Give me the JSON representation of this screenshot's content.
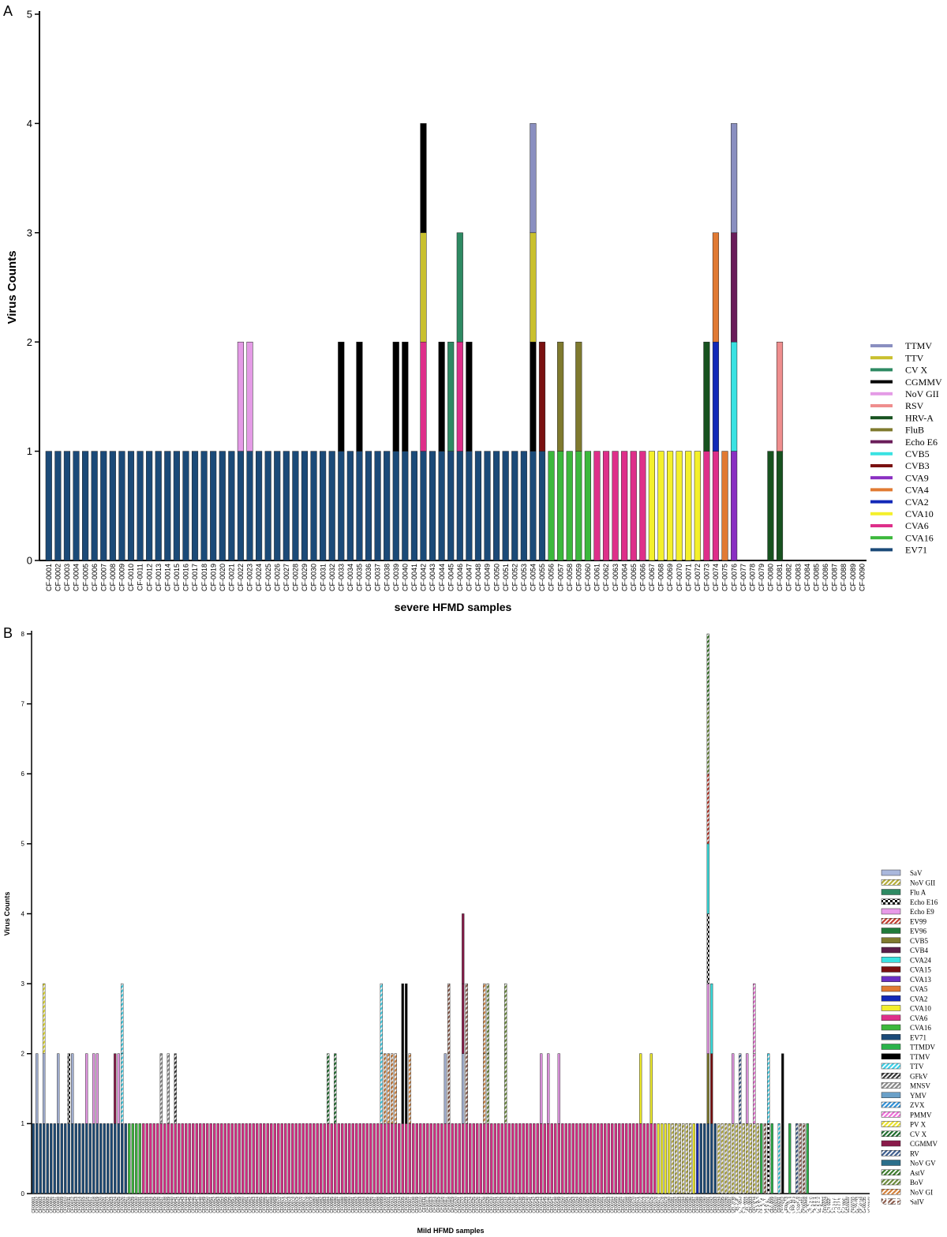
{
  "chart_data": [
    {
      "panel": "A",
      "type": "bar",
      "stacked": true,
      "xlabel": "severe HFMD samples",
      "ylabel": "Virus Counts",
      "ylim": [
        0,
        5
      ],
      "yticks": [
        0,
        1,
        2,
        3,
        4,
        5
      ],
      "legend_position": "right",
      "sample_prefix": "CF-",
      "sample_count": 90,
      "legend": [
        {
          "name": "TTMV",
          "color": "#8a8fc0"
        },
        {
          "name": "TTV",
          "color": "#c9c02e"
        },
        {
          "name": "CV X",
          "color": "#2e8a63"
        },
        {
          "name": "CGMMV",
          "color": "#000000"
        },
        {
          "name": "NoV GII",
          "color": "#e49be6"
        },
        {
          "name": "RSV",
          "color": "#ef8e8e"
        },
        {
          "name": "HRV-A",
          "color": "#17521f"
        },
        {
          "name": "FluB",
          "color": "#7f7a2e"
        },
        {
          "name": "Echo E6",
          "color": "#6a1d5a"
        },
        {
          "name": "CVB5",
          "color": "#3ae2e2"
        },
        {
          "name": "CVB3",
          "color": "#7a1010"
        },
        {
          "name": "CVA9",
          "color": "#8a2fc2"
        },
        {
          "name": "CVA4",
          "color": "#e17a33"
        },
        {
          "name": "CVA2",
          "color": "#1228b8"
        },
        {
          "name": "CVA10",
          "color": "#f4f02c"
        },
        {
          "name": "CVA6",
          "color": "#de2f8a"
        },
        {
          "name": "CVA16",
          "color": "#3cb83c"
        },
        {
          "name": "EV71",
          "color": "#1b4a78"
        }
      ],
      "stacks": {
        "1": [
          "EV71"
        ],
        "2": [
          "EV71"
        ],
        "3": [
          "EV71"
        ],
        "4": [
          "EV71"
        ],
        "5": [
          "EV71"
        ],
        "6": [
          "EV71"
        ],
        "7": [
          "EV71"
        ],
        "8": [
          "EV71"
        ],
        "9": [
          "EV71"
        ],
        "10": [
          "EV71"
        ],
        "11": [
          "EV71"
        ],
        "12": [
          "EV71"
        ],
        "13": [
          "EV71"
        ],
        "14": [
          "EV71"
        ],
        "15": [
          "EV71"
        ],
        "16": [
          "EV71"
        ],
        "17": [
          "EV71"
        ],
        "18": [
          "EV71"
        ],
        "19": [
          "EV71"
        ],
        "20": [
          "EV71"
        ],
        "21": [
          "EV71"
        ],
        "22": [
          "EV71",
          "NoV GII"
        ],
        "23": [
          "EV71",
          "NoV GII"
        ],
        "24": [
          "EV71"
        ],
        "25": [
          "EV71"
        ],
        "26": [
          "EV71"
        ],
        "27": [
          "EV71"
        ],
        "28": [
          "EV71"
        ],
        "29": [
          "EV71"
        ],
        "30": [
          "EV71"
        ],
        "31": [
          "EV71"
        ],
        "32": [
          "EV71"
        ],
        "33": [
          "EV71",
          "CGMMV"
        ],
        "34": [
          "EV71"
        ],
        "35": [
          "EV71",
          "CGMMV"
        ],
        "36": [
          "EV71"
        ],
        "37": [
          "EV71"
        ],
        "38": [
          "EV71"
        ],
        "39": [
          "EV71",
          "CGMMV"
        ],
        "40": [
          "EV71",
          "CGMMV"
        ],
        "41": [
          "EV71"
        ],
        "42": [
          "EV71",
          "CVA6",
          "TTV",
          "CGMMV"
        ],
        "43": [
          "EV71"
        ],
        "44": [
          "EV71",
          "CGMMV"
        ],
        "45": [
          "EV71",
          "CV X"
        ],
        "46": [
          "EV71",
          "CVA6",
          "CV X"
        ],
        "47": [
          "EV71",
          "CGMMV"
        ],
        "48": [
          "EV71"
        ],
        "49": [
          "EV71"
        ],
        "50": [
          "EV71"
        ],
        "51": [
          "EV71"
        ],
        "52": [
          "EV71"
        ],
        "53": [
          "EV71"
        ],
        "54": [
          "EV71",
          "CGMMV",
          "TTV",
          "TTMV"
        ],
        "55": [
          "EV71",
          "CVB3"
        ],
        "56": [
          "CVA16"
        ],
        "57": [
          "CVA16",
          "FluB"
        ],
        "58": [
          "CVA16"
        ],
        "59": [
          "CVA16",
          "FluB"
        ],
        "60": [
          "CVA16"
        ],
        "61": [
          "CVA6"
        ],
        "62": [
          "CVA6"
        ],
        "63": [
          "CVA6"
        ],
        "64": [
          "CVA6"
        ],
        "65": [
          "CVA6"
        ],
        "66": [
          "CVA6"
        ],
        "67": [
          "CVA10"
        ],
        "68": [
          "CVA10"
        ],
        "69": [
          "CVA10"
        ],
        "70": [
          "CVA10"
        ],
        "71": [
          "CVA10"
        ],
        "72": [
          "CVA10"
        ],
        "73": [
          "CVA6",
          "HRV-A"
        ],
        "74": [
          "CVA6",
          "CVA2",
          "CVA4"
        ],
        "75": [
          "CVA4"
        ],
        "76": [
          "CVA9",
          "CVB5",
          "Echo E6",
          "TTMV"
        ],
        "80": [
          "HRV-A"
        ],
        "81": [
          "HRV-A",
          "RSV"
        ]
      }
    },
    {
      "panel": "B",
      "type": "bar",
      "stacked": true,
      "xlabel": "Mild HFMD samples",
      "ylabel": "Virus Counts",
      "ylim": [
        0,
        8
      ],
      "yticks": [
        0,
        1,
        2,
        3,
        4,
        5,
        6,
        7,
        8
      ],
      "legend_position": "right",
      "sample_prefix": "CF00",
      "sample_count": 236,
      "legend": [
        {
          "name": "SaV",
          "color": "#aab8dc",
          "pattern": "solid"
        },
        {
          "name": "NoV GII",
          "color": "#b5ad3a",
          "pattern": "hatch"
        },
        {
          "name": "Flu A",
          "color": "#2e8a63",
          "pattern": "solid"
        },
        {
          "name": "Echo E16",
          "color": "#000000",
          "pattern": "checker"
        },
        {
          "name": "Echo E9",
          "color": "#e89ae8",
          "pattern": "solid"
        },
        {
          "name": "EV99",
          "color": "#c0392b",
          "pattern": "hatch"
        },
        {
          "name": "EV96",
          "color": "#1f7a3a",
          "pattern": "solid"
        },
        {
          "name": "CVB5",
          "color": "#7f7a2e",
          "pattern": "solid"
        },
        {
          "name": "CVB4",
          "color": "#5a1d4a",
          "pattern": "solid"
        },
        {
          "name": "CVA24",
          "color": "#3ae2e2",
          "pattern": "solid"
        },
        {
          "name": "CVA15",
          "color": "#7a1010",
          "pattern": "solid"
        },
        {
          "name": "CVA13",
          "color": "#6a2fc2",
          "pattern": "solid"
        },
        {
          "name": "CVA5",
          "color": "#e17a33",
          "pattern": "solid"
        },
        {
          "name": "CVA2",
          "color": "#1228b8",
          "pattern": "solid"
        },
        {
          "name": "CVA10",
          "color": "#f4f02c",
          "pattern": "solid"
        },
        {
          "name": "CVA6",
          "color": "#de2f8a",
          "pattern": "solid"
        },
        {
          "name": "CVA16",
          "color": "#3cb83c",
          "pattern": "solid"
        },
        {
          "name": "EV71",
          "color": "#1b4a78",
          "pattern": "solid"
        },
        {
          "name": "TTMDV",
          "color": "#2bb34a",
          "pattern": "solid"
        },
        {
          "name": "TTMV",
          "color": "#000000",
          "pattern": "solid"
        },
        {
          "name": "TTV",
          "color": "#3ad0e8",
          "pattern": "hatch"
        },
        {
          "name": "GFkV",
          "color": "#333333",
          "pattern": "hatch"
        },
        {
          "name": "MNSV",
          "color": "#888888",
          "pattern": "hatch"
        },
        {
          "name": "YMV",
          "color": "#6aa0c8",
          "pattern": "solid"
        },
        {
          "name": "ZVX",
          "color": "#2d8fd8",
          "pattern": "hatch"
        },
        {
          "name": "PMMV",
          "color": "#ee6fd8",
          "pattern": "hatch"
        },
        {
          "name": "PV X",
          "color": "#e8e02c",
          "pattern": "hatch"
        },
        {
          "name": "CV X",
          "color": "#1a6a2a",
          "pattern": "hatch"
        },
        {
          "name": "CGMMV",
          "color": "#8a1a4a",
          "pattern": "solid"
        },
        {
          "name": "RV",
          "color": "#3a5a8a",
          "pattern": "hatch"
        },
        {
          "name": "NoV GV",
          "color": "#2a6e8a",
          "pattern": "solid"
        },
        {
          "name": "AstV",
          "color": "#3a7a2a",
          "pattern": "hatch"
        },
        {
          "name": "BoV",
          "color": "#6a8a3a",
          "pattern": "hatch"
        },
        {
          "name": "NoV GI",
          "color": "#d2803a",
          "pattern": "hatch"
        },
        {
          "name": "SalV",
          "color": "#8a5a4a",
          "pattern": "hatch"
        }
      ],
      "group_defaults": [
        {
          "from": 1,
          "to": 27,
          "virus": "EV71"
        },
        {
          "from": 28,
          "to": 31,
          "virus": "CVA16"
        },
        {
          "from": 32,
          "to": 176,
          "virus": "CVA6"
        },
        {
          "from": 177,
          "to": 180,
          "virus": "CVA10"
        },
        {
          "from": 181,
          "to": 186,
          "virus": "NoV GII"
        },
        {
          "from": 187,
          "to": 187,
          "virus": "CVA10"
        },
        {
          "from": 188,
          "to": 188,
          "virus": "CVA2"
        },
        {
          "from": 189,
          "to": 193,
          "virus": "EV71"
        },
        {
          "from": 194,
          "to": 205,
          "virus": "NoV GII"
        }
      ],
      "extra": {
        "2": [
          "SaV"
        ],
        "4": [
          "SaV",
          "PV X"
        ],
        "8": [
          "SaV"
        ],
        "11": [
          "Echo E16"
        ],
        "12": [
          "SaV"
        ],
        "16": [
          "Echo E9"
        ],
        "18": [
          "Echo E9"
        ],
        "19": [
          "Echo E9"
        ],
        "24": [
          "CGMMV"
        ],
        "25": [
          "Echo E9"
        ],
        "26": [
          "TTV",
          "TTV"
        ],
        "37": [
          "MNSV"
        ],
        "39": [
          "MNSV"
        ],
        "41": [
          "GFkV"
        ],
        "84": [
          "CV X"
        ],
        "86": [
          "CV X"
        ],
        "99": [
          "TTV",
          "TTV"
        ],
        "100": [
          "NoV GI"
        ],
        "101": [
          "NoV GI"
        ],
        "102": [
          "NoV GI"
        ],
        "103": [
          "NoV GI"
        ],
        "105": [
          "TTMV",
          "TTMV"
        ],
        "106": [
          "TTMV",
          "TTMV"
        ],
        "107": [
          "NoV GI"
        ],
        "117": [
          "SaV"
        ],
        "118": [
          "SalV",
          "SalV"
        ],
        "122": [
          "SaV",
          "CGMMV",
          "CGMMV"
        ],
        "123": [
          "SalV",
          "SalV"
        ],
        "128": [
          "NoV GI",
          "NoV GI"
        ],
        "129": [
          "BoV",
          "BoV"
        ],
        "134": [
          "BoV",
          "BoV"
        ],
        "144": [
          "Echo E9"
        ],
        "146": [
          "Echo E9"
        ],
        "149": [
          "Echo E9"
        ],
        "172": [
          "CVA10"
        ],
        "175": [
          "CVA10"
        ],
        "191": [
          "CVB5",
          "Echo E9",
          "Echo E16",
          "CVA24",
          "EV99",
          "BoV",
          "AstV"
        ],
        "192": [
          "CVA15",
          "CVA24"
        ],
        "198": [
          "Echo E9"
        ],
        "200": [
          "RV"
        ],
        "202": [
          "Echo E9"
        ],
        "204": [
          "PMMV",
          "PMMV"
        ],
        "206": [
          "TTMDV",
          "TTMDV"
        ]
      },
      "tail": {
        "206": [
          "TTMDV"
        ],
        "207": [
          "SalV"
        ],
        "208": [
          "Echo E16",
          "TTV"
        ],
        "209": [
          "TTMDV"
        ],
        "211": [
          "TTV"
        ],
        "212": [
          "TTMV",
          "TTMV"
        ],
        "214": [
          "TTMDV"
        ],
        "216": [
          "RV"
        ],
        "217": [
          "SalV"
        ],
        "218": [
          "SalV"
        ],
        "219": [
          "TTMDV"
        ]
      }
    }
  ],
  "panel_labels": {
    "a": "A",
    "b": "B"
  },
  "watermark": "头条 @易基因科技"
}
